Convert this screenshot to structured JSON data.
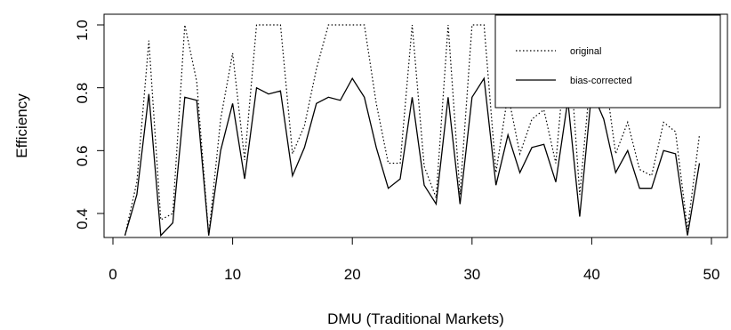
{
  "chart_data": {
    "type": "line",
    "title": "",
    "xlabel": "DMU (Traditional Markets)",
    "ylabel": "Efficiency",
    "xlim": [
      0,
      50
    ],
    "ylim": [
      0.33,
      1.03
    ],
    "xticks": [
      0,
      10,
      20,
      30,
      40,
      50
    ],
    "xtick_labels": [
      "0",
      "10",
      "20",
      "30",
      "40",
      "50"
    ],
    "yticks": [
      0.4,
      0.6,
      0.8,
      1.0
    ],
    "ytick_labels": [
      "0.4",
      "0.6",
      "0.8",
      "1.0"
    ],
    "grid": false,
    "legend_position": "top-right",
    "x": [
      1,
      2,
      3,
      4,
      5,
      6,
      7,
      8,
      9,
      10,
      11,
      12,
      13,
      14,
      15,
      16,
      17,
      18,
      19,
      20,
      21,
      22,
      23,
      24,
      25,
      26,
      27,
      28,
      29,
      30,
      31,
      32,
      33,
      34,
      35,
      36,
      37,
      38,
      39,
      40,
      41,
      42,
      43,
      44,
      45,
      46,
      47,
      48,
      49
    ],
    "series": [
      {
        "name": "original",
        "line_style": "dotted",
        "values": [
          0.33,
          0.5,
          0.95,
          0.38,
          0.4,
          1.0,
          0.82,
          0.33,
          0.7,
          0.91,
          0.57,
          1.0,
          1.0,
          1.0,
          0.59,
          0.68,
          0.86,
          1.0,
          1.0,
          1.0,
          1.0,
          0.75,
          0.56,
          0.56,
          1.0,
          0.55,
          0.45,
          1.0,
          0.46,
          1.0,
          1.0,
          0.53,
          0.78,
          0.59,
          0.7,
          0.73,
          0.56,
          1.0,
          0.46,
          0.88,
          0.87,
          0.59,
          0.69,
          0.54,
          0.52,
          0.69,
          0.66,
          0.35,
          0.65
        ]
      },
      {
        "name": "bias-corrected",
        "line_style": "solid",
        "values": [
          0.33,
          0.46,
          0.78,
          0.33,
          0.37,
          0.77,
          0.76,
          0.33,
          0.6,
          0.75,
          0.51,
          0.8,
          0.78,
          0.79,
          0.52,
          0.61,
          0.75,
          0.77,
          0.76,
          0.83,
          0.77,
          0.61,
          0.48,
          0.51,
          0.77,
          0.49,
          0.43,
          0.77,
          0.43,
          0.77,
          0.83,
          0.49,
          0.65,
          0.53,
          0.61,
          0.62,
          0.5,
          0.76,
          0.39,
          0.79,
          0.7,
          0.53,
          0.6,
          0.48,
          0.48,
          0.6,
          0.59,
          0.33,
          0.56
        ]
      }
    ]
  }
}
